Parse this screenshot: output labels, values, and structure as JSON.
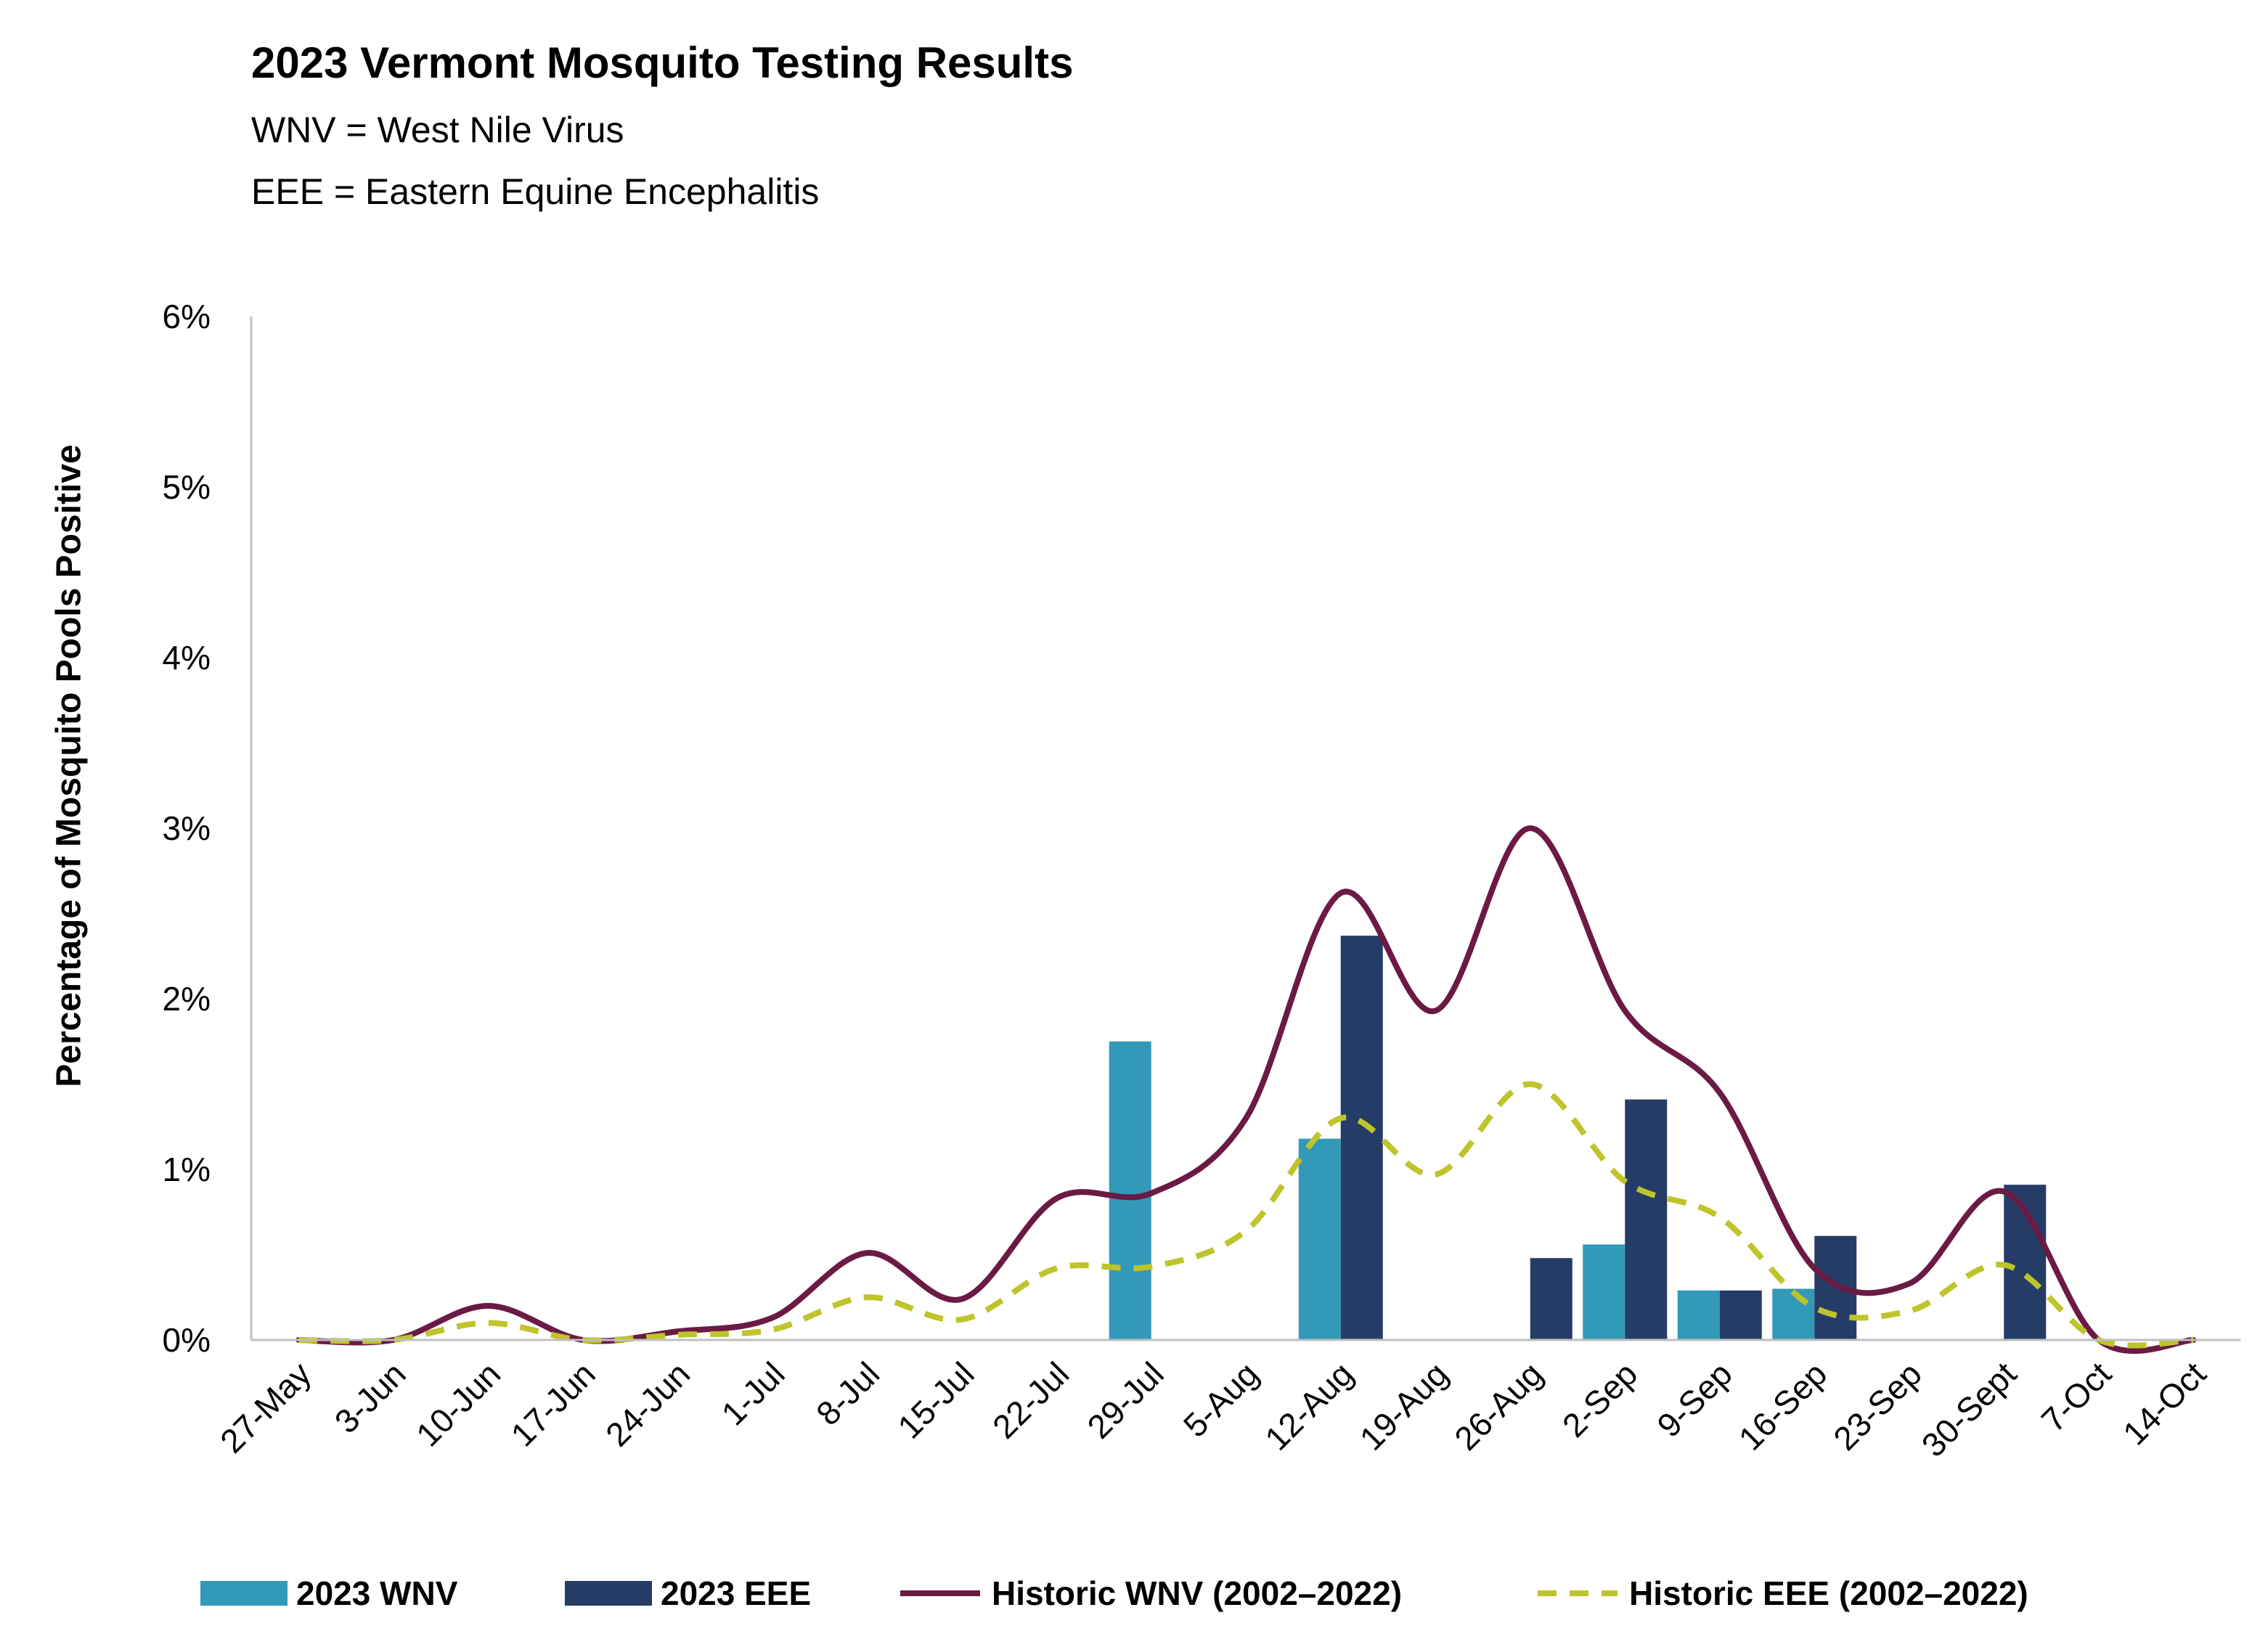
{
  "chart_data": {
    "type": "bar",
    "title": "2023 Vermont Mosquito Testing Results",
    "subtitle_lines": [
      "WNV = West Nile Virus",
      "EEE = Eastern Equine Encephalitis"
    ],
    "xlabel": "",
    "ylabel": "Percentage of Mosquito Pools Positive",
    "ylim": [
      0,
      6
    ],
    "yticks": [
      "0%",
      "1%",
      "2%",
      "3%",
      "4%",
      "5%",
      "6%"
    ],
    "categories": [
      "27-May",
      "3-Jun",
      "10-Jun",
      "17-Jun",
      "24-Jun",
      "1-Jul",
      "8-Jul",
      "15-Jul",
      "22-Jul",
      "29-Jul",
      "5-Aug",
      "12-Aug",
      "19-Aug",
      "26-Aug",
      "2-Sep",
      "9-Sep",
      "16-Sep",
      "23-Sep",
      "30-Sept",
      "7-Oct",
      "14-Oct"
    ],
    "series": [
      {
        "name": "2023 WNV",
        "kind": "bar",
        "color": "#3399B8",
        "values": [
          0,
          0,
          0,
          0,
          0,
          0,
          0,
          0,
          0,
          1.75,
          0,
          1.18,
          0,
          0,
          0.56,
          0.29,
          0.3,
          0,
          0,
          0,
          0
        ]
      },
      {
        "name": "2023 EEE",
        "kind": "bar",
        "color": "#253D66",
        "values": [
          0,
          0,
          0,
          0,
          0,
          0,
          0,
          0,
          0,
          0,
          0,
          2.37,
          0,
          0.48,
          1.41,
          0.29,
          0.61,
          0,
          0.91,
          0,
          0
        ]
      },
      {
        "name": "Historic WNV (2002–2022)",
        "kind": "line",
        "style": "solid",
        "color": "#6B1A44",
        "values": [
          0,
          0,
          0.2,
          0,
          0.05,
          0.13,
          0.51,
          0.24,
          0.83,
          0.86,
          1.3,
          2.62,
          1.93,
          3.0,
          1.93,
          1.45,
          0.42,
          0.33,
          0.87,
          0,
          0
        ]
      },
      {
        "name": "Historic EEE (2002–2022)",
        "kind": "line",
        "style": "dashed",
        "color": "#BEC42A",
        "values": [
          0,
          0,
          0.1,
          0,
          0.03,
          0.06,
          0.25,
          0.12,
          0.42,
          0.43,
          0.64,
          1.3,
          0.97,
          1.5,
          0.93,
          0.72,
          0.19,
          0.17,
          0.44,
          0,
          0
        ]
      }
    ],
    "grid": false,
    "legend_position": "bottom"
  }
}
